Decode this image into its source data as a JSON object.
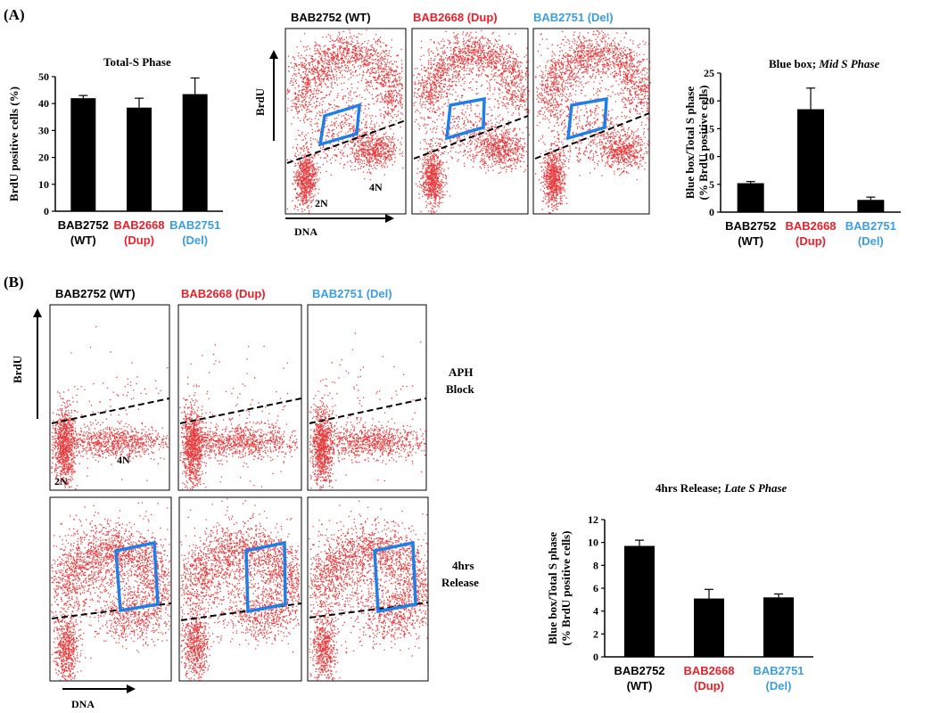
{
  "panels": {
    "a_label": "(A)",
    "b_label": "(B)"
  },
  "colors": {
    "wt": "#000000",
    "dup": "#e8202a",
    "del": "#3b9ee0",
    "dots": "#e41a1c",
    "gate": "#1f7fe8",
    "bar": "#000000"
  },
  "strains": [
    {
      "id": "BAB2752",
      "tag": "(WT)",
      "heading": "BAB2752 (WT)"
    },
    {
      "id": "BAB2668",
      "tag": "(Dup)",
      "heading": "BAB2668 (Dup)"
    },
    {
      "id": "BAB2751",
      "tag": "(Del)",
      "heading": "BAB2751 (Del)"
    }
  ],
  "flow_labels": {
    "brdu": "BrdU",
    "dna": "DNA",
    "two_n": "2N",
    "four_n": "4N",
    "aph_line1": "APH",
    "aph_line2": "Block",
    "rel_line1": "4hrs",
    "rel_line2": "Release"
  },
  "chart_data": [
    {
      "type": "bar",
      "title": "Total-S Phase",
      "ylabel": "BrdU positive cells (%)",
      "ylim": [
        0,
        50
      ],
      "yticks": [
        0,
        10,
        20,
        30,
        40,
        50
      ],
      "categories": [
        "BAB2752 (WT)",
        "BAB2668 (Dup)",
        "BAB2751 (Del)"
      ],
      "values": [
        42,
        38.5,
        43.5
      ],
      "errors": [
        1,
        3.5,
        6
      ]
    },
    {
      "type": "bar",
      "title_plain": "Blue box; ",
      "title_italic": "Mid S Phase",
      "ylabel_line1": "Blue box/Total S phase",
      "ylabel_line2": "(% BrdU positive cells)",
      "ylim": [
        0,
        25
      ],
      "yticks": [
        0,
        5,
        10,
        15,
        20,
        25
      ],
      "categories": [
        "BAB2752 (WT)",
        "BAB2668 (Dup)",
        "BAB2751 (Del)"
      ],
      "values": [
        5.2,
        18.5,
        2.2
      ],
      "errors": [
        0.3,
        3.8,
        0.5
      ]
    },
    {
      "type": "bar",
      "title_plain": "4hrs Release; ",
      "title_italic": "Late S Phase",
      "ylabel_line1": "Blue box/Total S phase",
      "ylabel_line2": "(% BrdU positive cells)",
      "ylim": [
        0,
        12
      ],
      "yticks": [
        0,
        2,
        4,
        6,
        8,
        10,
        12
      ],
      "categories": [
        "BAB2752 (WT)",
        "BAB2668 (Dup)",
        "BAB2751 (Del)"
      ],
      "values": [
        9.7,
        5.1,
        5.2
      ],
      "errors": [
        0.5,
        0.8,
        0.3
      ]
    }
  ]
}
